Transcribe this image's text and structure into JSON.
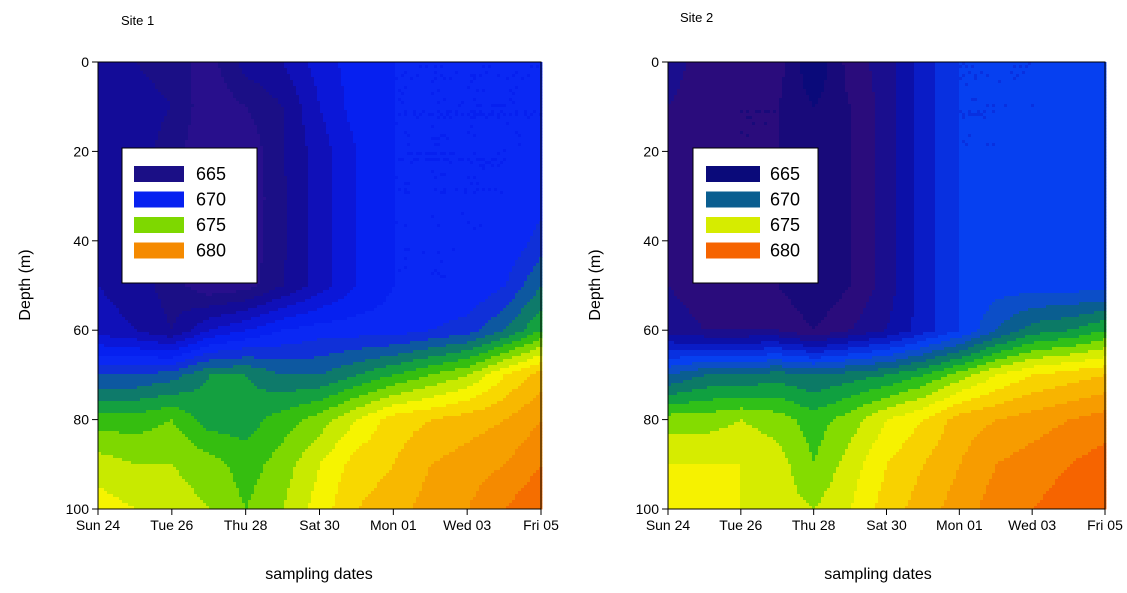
{
  "colors": {
    "site1": [
      "#1a0e7e",
      "#280f8c",
      "#1b0f86",
      "#130c98",
      "#1010b8",
      "#0b17d8",
      "#0620f0",
      "#0a28f4",
      "#1030d8",
      "#0d58a0",
      "#0e7a6a",
      "#14a040",
      "#35be10",
      "#7ed800",
      "#c8ea00",
      "#f6f400",
      "#f8d800",
      "#f8b800",
      "#f6a000",
      "#f58a00",
      "#f56e00",
      "#f44a00"
    ],
    "site2": [
      "#0a0a7a",
      "#180a7a",
      "#2a0c7c",
      "#1a0e8e",
      "#0c10a8",
      "#0a1cc6",
      "#0830e0",
      "#0640f0",
      "#0c4ec8",
      "#0a5e90",
      "#0c7a66",
      "#10a040",
      "#30c018",
      "#84dc00",
      "#d6ec00",
      "#f6f200",
      "#f8d200",
      "#f8b400",
      "#f79c00",
      "#f68200",
      "#f66400",
      "#f54800"
    ]
  },
  "chart_data": [
    {
      "type": "heatmap",
      "title": "Site 1",
      "xlabel": "sampling dates",
      "ylabel": "Depth (m)",
      "x_ticks": [
        "Sun 24",
        "Tue 26",
        "Thu 28",
        "Sat 30",
        "Mon 01",
        "Wed 03",
        "Fri 05"
      ],
      "x": [
        "Sun 24",
        "Mon 25",
        "Tue 26",
        "Wed 27",
        "Thu 28",
        "Fri 29",
        "Sat 30",
        "Sun 31",
        "Mon 01",
        "Tue 02",
        "Wed 03",
        "Thu 04",
        "Fri 05"
      ],
      "y_ticks": [
        0,
        20,
        40,
        60,
        80,
        100
      ],
      "y": [
        0,
        10,
        20,
        30,
        40,
        50,
        60,
        70,
        80,
        90,
        100
      ],
      "ylim": [
        100,
        0
      ],
      "legend": [
        "665",
        "670",
        "675",
        "680"
      ],
      "levels": [
        665,
        670,
        675,
        680
      ],
      "z": [
        [
          666.5,
          666.0,
          665.5,
          664.5,
          666.5,
          667.0,
          668.5,
          669.5,
          670.0,
          670.0,
          670.0,
          670.0,
          670.0
        ],
        [
          667.0,
          666.5,
          666.0,
          664.2,
          665.0,
          666.0,
          668.0,
          669.5,
          670.0,
          670.0,
          670.0,
          670.0,
          670.0
        ],
        [
          667.0,
          666.5,
          665.5,
          664.0,
          664.2,
          666.0,
          667.5,
          669.0,
          670.0,
          670.0,
          670.0,
          670.0,
          670.0
        ],
        [
          667.0,
          666.5,
          665.5,
          664.0,
          664.2,
          665.8,
          667.5,
          669.0,
          670.0,
          670.0,
          670.0,
          670.0,
          670.5
        ],
        [
          667.0,
          666.5,
          665.5,
          664.0,
          664.2,
          665.8,
          667.5,
          669.0,
          670.0,
          670.0,
          670.0,
          670.0,
          671.5
        ],
        [
          667.0,
          666.5,
          665.5,
          664.2,
          664.5,
          666.0,
          667.5,
          669.0,
          670.0,
          670.0,
          670.0,
          671.0,
          673.0
        ],
        [
          667.5,
          667.0,
          666.0,
          668.0,
          669.0,
          670.0,
          670.5,
          670.5,
          670.5,
          671.0,
          671.5,
          673.0,
          675.0
        ],
        [
          672.0,
          672.0,
          672.5,
          674.0,
          674.0,
          673.0,
          673.0,
          674.0,
          675.0,
          676.0,
          677.0,
          679.0,
          680.5
        ],
        [
          675.5,
          675.5,
          676.0,
          674.5,
          674.5,
          675.5,
          676.5,
          678.0,
          679.5,
          680.0,
          680.5,
          681.0,
          682.0
        ],
        [
          677.5,
          677.0,
          677.0,
          676.5,
          675.5,
          676.5,
          678.0,
          679.5,
          680.0,
          681.0,
          681.5,
          682.0,
          683.0
        ],
        [
          678.5,
          678.0,
          677.5,
          677.0,
          676.0,
          677.0,
          678.5,
          680.0,
          680.5,
          681.5,
          682.0,
          683.0,
          684.0
        ]
      ]
    },
    {
      "type": "heatmap",
      "title": "Site 2",
      "xlabel": "sampling dates",
      "ylabel": "Depth (m)",
      "x_ticks": [
        "Sun 24",
        "Tue 26",
        "Thu 28",
        "Sat 30",
        "Mon 01",
        "Wed 03",
        "Fri 05"
      ],
      "x": [
        "Sun 24",
        "Mon 25",
        "Tue 26",
        "Wed 27",
        "Thu 28",
        "Fri 29",
        "Sat 30",
        "Sun 31",
        "Mon 01",
        "Tue 02",
        "Wed 03",
        "Thu 04",
        "Fri 05"
      ],
      "y_ticks": [
        0,
        20,
        40,
        60,
        80,
        100
      ],
      "y": [
        0,
        10,
        20,
        30,
        40,
        50,
        60,
        70,
        80,
        90,
        100
      ],
      "ylim": [
        100,
        0
      ],
      "legend": [
        "665",
        "670",
        "675",
        "680"
      ],
      "levels": [
        665,
        670,
        675,
        680
      ],
      "z": [
        [
          666.5,
          665.5,
          665.0,
          665.5,
          663.0,
          665.5,
          666.5,
          668.5,
          670.0,
          670.0,
          670.0,
          670.0,
          670.0
        ],
        [
          666.0,
          665.5,
          665.0,
          665.0,
          664.0,
          665.0,
          666.5,
          668.5,
          670.0,
          670.0,
          670.0,
          670.5,
          670.5
        ],
        [
          666.0,
          665.5,
          665.0,
          665.0,
          664.0,
          665.0,
          666.5,
          668.5,
          670.0,
          670.0,
          670.5,
          670.5,
          670.5
        ],
        [
          666.0,
          665.5,
          665.0,
          665.0,
          664.0,
          665.0,
          666.5,
          668.5,
          670.0,
          670.5,
          670.5,
          670.5,
          670.5
        ],
        [
          666.0,
          665.5,
          665.0,
          665.0,
          664.0,
          665.0,
          666.5,
          668.5,
          670.0,
          670.5,
          670.5,
          670.5,
          670.5
        ],
        [
          666.0,
          665.5,
          665.0,
          665.0,
          664.0,
          665.0,
          666.5,
          668.5,
          670.0,
          670.5,
          670.5,
          670.5,
          670.5
        ],
        [
          666.5,
          666.0,
          666.0,
          666.0,
          665.0,
          666.0,
          667.0,
          668.5,
          670.0,
          672.0,
          673.5,
          674.0,
          675.0
        ],
        [
          672.0,
          673.0,
          673.0,
          673.5,
          673.0,
          673.5,
          674.0,
          675.0,
          676.5,
          678.0,
          679.0,
          679.5,
          680.0
        ],
        [
          676.5,
          676.5,
          677.0,
          676.5,
          675.5,
          676.5,
          678.0,
          679.0,
          680.5,
          681.0,
          681.5,
          682.0,
          682.5
        ],
        [
          678.0,
          678.0,
          678.0,
          677.5,
          676.0,
          677.5,
          679.0,
          680.0,
          681.0,
          682.0,
          682.5,
          683.0,
          683.5
        ],
        [
          678.5,
          678.5,
          678.0,
          677.5,
          677.0,
          678.0,
          679.5,
          680.5,
          681.5,
          682.5,
          683.0,
          683.5,
          684.0
        ]
      ]
    }
  ]
}
